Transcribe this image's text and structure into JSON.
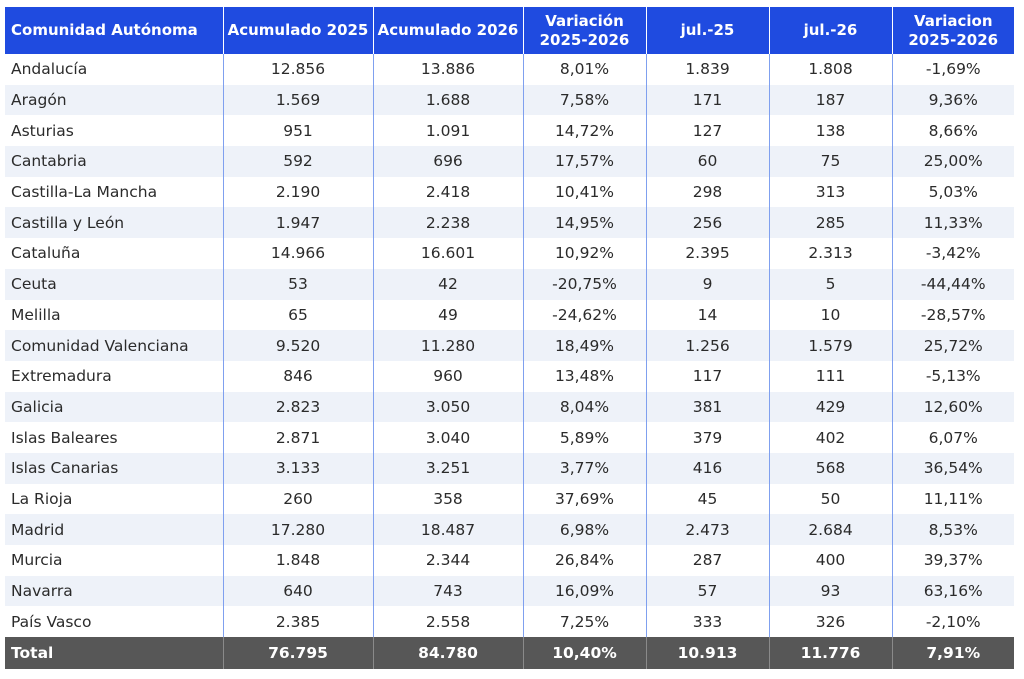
{
  "table": {
    "headers": [
      {
        "line1": "Comunidad Autónoma",
        "line2": ""
      },
      {
        "line1": "Acumulado 2025",
        "line2": ""
      },
      {
        "line1": "Acumulado 2026",
        "line2": ""
      },
      {
        "line1": "Variación",
        "line2": "2025-2026"
      },
      {
        "line1": "jul.-25",
        "line2": ""
      },
      {
        "line1": "jul.-26",
        "line2": ""
      },
      {
        "line1": "Variacion",
        "line2": "2025-2026"
      }
    ],
    "rows": [
      [
        "Andalucía",
        "12.856",
        "13.886",
        "8,01%",
        "1.839",
        "1.808",
        "-1,69%"
      ],
      [
        "Aragón",
        "1.569",
        "1.688",
        "7,58%",
        "171",
        "187",
        "9,36%"
      ],
      [
        "Asturias",
        "951",
        "1.091",
        "14,72%",
        "127",
        "138",
        "8,66%"
      ],
      [
        "Cantabria",
        "592",
        "696",
        "17,57%",
        "60",
        "75",
        "25,00%"
      ],
      [
        "Castilla-La Mancha",
        "2.190",
        "2.418",
        "10,41%",
        "298",
        "313",
        "5,03%"
      ],
      [
        "Castilla y León",
        "1.947",
        "2.238",
        "14,95%",
        "256",
        "285",
        "11,33%"
      ],
      [
        "Cataluña",
        "14.966",
        "16.601",
        "10,92%",
        "2.395",
        "2.313",
        "-3,42%"
      ],
      [
        "Ceuta",
        "53",
        "42",
        "-20,75%",
        "9",
        "5",
        "-44,44%"
      ],
      [
        "Melilla",
        "65",
        "49",
        "-24,62%",
        "14",
        "10",
        "-28,57%"
      ],
      [
        "Comunidad Valenciana",
        "9.520",
        "11.280",
        "18,49%",
        "1.256",
        "1.579",
        "25,72%"
      ],
      [
        "Extremadura",
        "846",
        "960",
        "13,48%",
        "117",
        "111",
        "-5,13%"
      ],
      [
        "Galicia",
        "2.823",
        "3.050",
        "8,04%",
        "381",
        "429",
        "12,60%"
      ],
      [
        "Islas Baleares",
        "2.871",
        "3.040",
        "5,89%",
        "379",
        "402",
        "6,07%"
      ],
      [
        "Islas Canarias",
        "3.133",
        "3.251",
        "3,77%",
        "416",
        "568",
        "36,54%"
      ],
      [
        "La Rioja",
        "260",
        "358",
        "37,69%",
        "45",
        "50",
        "11,11%"
      ],
      [
        "Madrid",
        "17.280",
        "18.487",
        "6,98%",
        "2.473",
        "2.684",
        "8,53%"
      ],
      [
        "Murcia",
        "1.848",
        "2.344",
        "26,84%",
        "287",
        "400",
        "39,37%"
      ],
      [
        "Navarra",
        "640",
        "743",
        "16,09%",
        "57",
        "93",
        "63,16%"
      ],
      [
        "País Vasco",
        "2.385",
        "2.558",
        "7,25%",
        "333",
        "326",
        "-2,10%"
      ]
    ],
    "total": [
      "Total",
      "76.795",
      "84.780",
      "10,40%",
      "10.913",
      "11.776",
      "7,91%"
    ]
  },
  "colors": {
    "header_bg": "#1f4be0",
    "row_alt_bg": "#eef2f9",
    "total_bg": "#575757"
  }
}
